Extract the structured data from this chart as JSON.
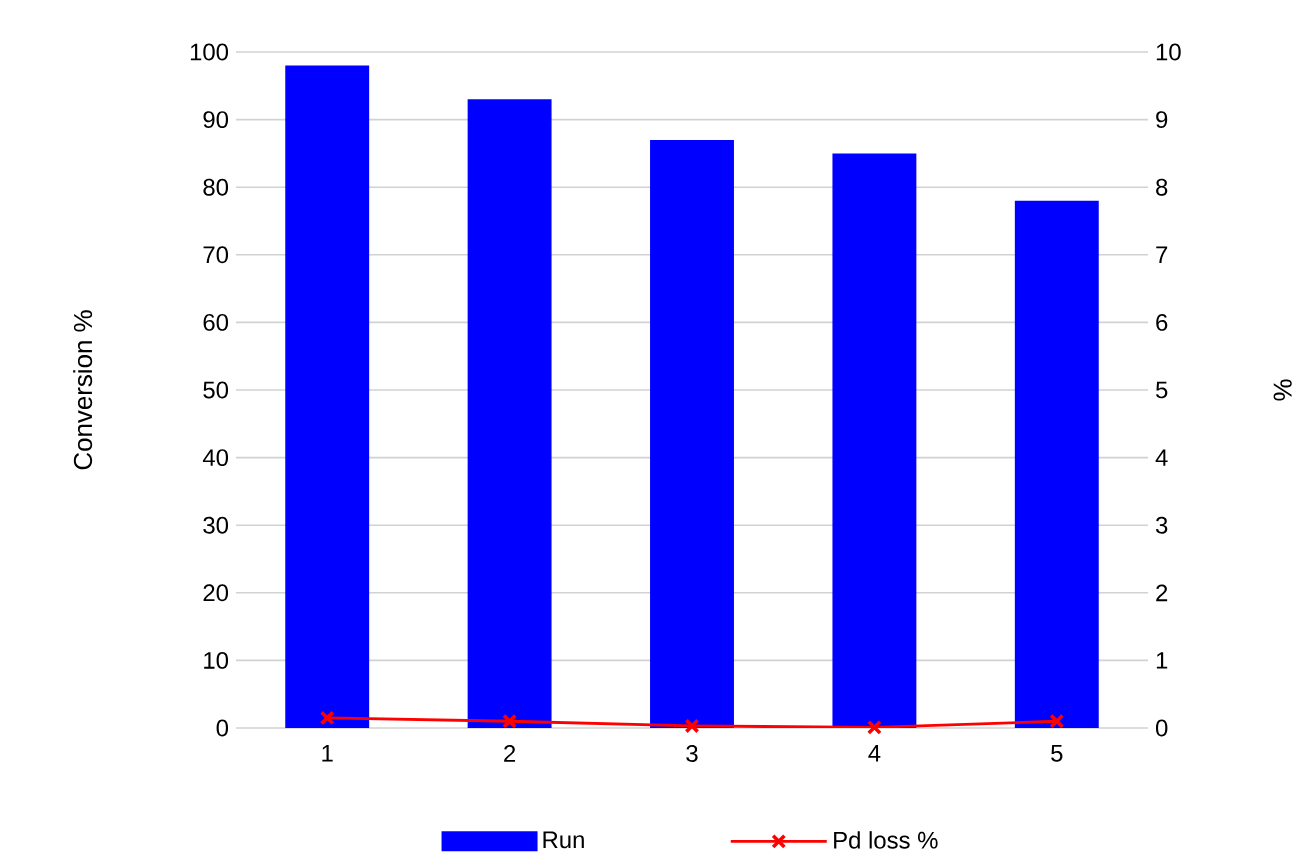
{
  "chart_data": {
    "type": "bar",
    "categories": [
      "1",
      "2",
      "3",
      "4",
      "5"
    ],
    "ylabel": "Conversion %",
    "y2label": "%",
    "ylim": [
      0,
      100
    ],
    "yticks": [
      0,
      10,
      20,
      30,
      40,
      50,
      60,
      70,
      80,
      90,
      100
    ],
    "y2lim": [
      0,
      10
    ],
    "y2ticks": [
      0,
      1,
      2,
      3,
      4,
      5,
      6,
      7,
      8,
      9,
      10
    ],
    "grid": "y",
    "legend": "bottom",
    "series": [
      {
        "name": "Run",
        "color": "#0000ff",
        "values": [
          98,
          93,
          87,
          85,
          78
        ]
      },
      {
        "name": "Pd loss %",
        "type": "line",
        "axis": "y2",
        "color": "#ff0000",
        "marker": "cross",
        "line_style": "solid",
        "values": [
          0.15,
          0.1,
          0.03,
          0.01,
          0.1
        ]
      }
    ]
  }
}
